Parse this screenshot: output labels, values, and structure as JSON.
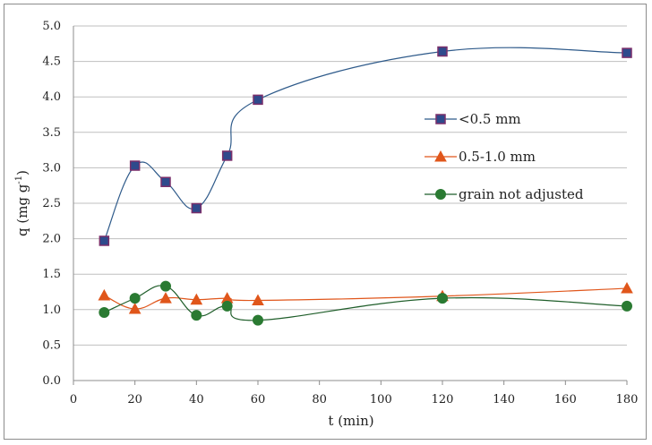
{
  "chart_data": {
    "type": "line",
    "title": "",
    "xlabel": "t (min)",
    "ylabel_main": "q (mg g",
    "ylabel_sup": "-1",
    "ylabel_close": ")",
    "xlim": [
      0,
      180
    ],
    "ylim": [
      0,
      5.0
    ],
    "x_ticks": [
      "0",
      "20",
      "40",
      "60",
      "80",
      "100",
      "120",
      "140",
      "160",
      "180"
    ],
    "y_ticks": [
      "0.0",
      "0.5",
      "1.0",
      "1.5",
      "2.0",
      "2.5",
      "3.0",
      "3.5",
      "4.0",
      "4.5",
      "5.0"
    ],
    "grid": "horizontal",
    "legend_position": "right",
    "series": [
      {
        "name": "<0.5 mm",
        "marker": "square",
        "marker_color": "#2e4a8c",
        "marker_edge": "#7a2f6b",
        "line_color": "#2e5a8a",
        "x": [
          10,
          20,
          30,
          40,
          50,
          60,
          120,
          180
        ],
        "y": [
          1.97,
          3.03,
          2.8,
          2.43,
          3.17,
          3.96,
          4.64,
          4.62
        ]
      },
      {
        "name": "0.5-1.0 mm",
        "marker": "triangle",
        "marker_color": "#e0561b",
        "marker_edge": "#e0561b",
        "line_color": "#e0561b",
        "x": [
          10,
          20,
          30,
          40,
          50,
          60,
          120,
          180
        ],
        "y": [
          1.2,
          1.01,
          1.16,
          1.14,
          1.16,
          1.13,
          1.19,
          1.3
        ]
      },
      {
        "name": "grain not adjusted",
        "marker": "circle",
        "marker_color": "#2a7a32",
        "marker_edge": "#2a7a32",
        "line_color": "#1f5e2a",
        "x": [
          10,
          20,
          30,
          40,
          50,
          60,
          120,
          180
        ],
        "y": [
          0.96,
          1.16,
          1.33,
          0.92,
          1.05,
          0.85,
          1.16,
          1.05
        ]
      }
    ]
  }
}
